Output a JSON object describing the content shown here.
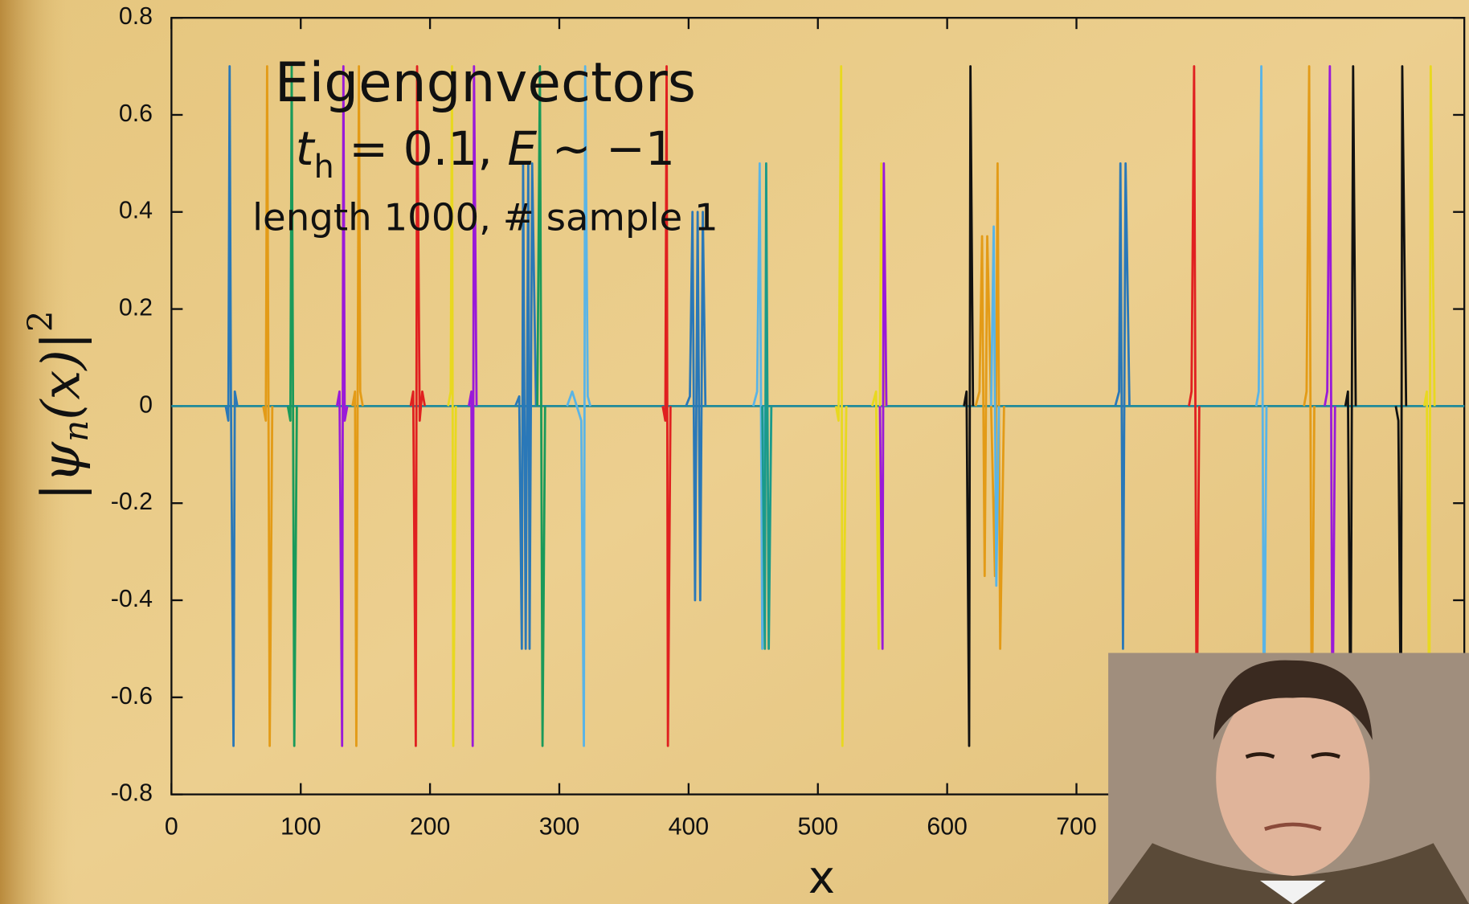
{
  "chart_data": {
    "type": "line",
    "title": "Eigengnvectors",
    "subtitle": [
      "t",
      "h",
      " = 0.1, ",
      "E",
      " ∼ −1"
    ],
    "annotation": "length 1000, # sample 1",
    "xlabel": "x",
    "ylabel": [
      "|ψ",
      "n",
      "(x)|",
      "2"
    ],
    "xlim": [
      0,
      1000
    ],
    "ylim": [
      -0.8,
      0.8
    ],
    "xticks": [
      0,
      100,
      200,
      300,
      400,
      500,
      600,
      700
    ],
    "yticks": [
      -0.8,
      -0.6,
      -0.4,
      -0.2,
      0,
      0.2,
      0.4,
      0.6,
      0.8
    ],
    "series": [
      {
        "color": "#1f8a9a",
        "x": [
          0,
          1000
        ],
        "values": [
          0,
          0
        ]
      },
      {
        "color": "#2a78b8",
        "x": [
          42,
          44,
          45,
          46,
          48,
          49,
          51
        ],
        "values": [
          0,
          -0.03,
          0.7,
          0.03,
          -0.7,
          0.03,
          0
        ]
      },
      {
        "color": "#e39b17",
        "x": [
          71,
          73,
          74,
          75,
          76,
          78
        ],
        "values": [
          0,
          -0.03,
          0.7,
          0.03,
          -0.7,
          0
        ]
      },
      {
        "color": "#1a9a5a",
        "x": [
          90,
          92,
          93,
          94,
          95,
          97
        ],
        "values": [
          0,
          -0.03,
          0.7,
          0.03,
          -0.7,
          0
        ]
      },
      {
        "color": "#9a1ad8",
        "x": [
          128,
          130,
          132,
          133,
          134,
          136
        ],
        "values": [
          0,
          0.03,
          -0.7,
          0.7,
          -0.03,
          0
        ]
      },
      {
        "color": "#e39b17",
        "x": [
          140,
          142,
          143,
          145,
          146,
          148
        ],
        "values": [
          0,
          0.03,
          -0.7,
          0.7,
          0.03,
          0
        ]
      },
      {
        "color": "#e02020",
        "x": [
          185,
          187,
          189,
          190,
          192,
          194,
          196
        ],
        "values": [
          0,
          0.03,
          -0.7,
          0.7,
          -0.03,
          0.03,
          0
        ]
      },
      {
        "color": "#e8d820",
        "x": [
          214,
          216,
          217,
          218,
          220
        ],
        "values": [
          0,
          0.03,
          0.7,
          -0.7,
          0
        ]
      },
      {
        "color": "#9a1ad8",
        "x": [
          230,
          232,
          233,
          234,
          236
        ],
        "values": [
          0,
          0.03,
          -0.7,
          0.7,
          0
        ]
      },
      {
        "color": "#2a78b8",
        "x": [
          266,
          269,
          271,
          272,
          274,
          276,
          277,
          279,
          282
        ],
        "values": [
          0,
          0.02,
          -0.5,
          0.5,
          -0.5,
          0.5,
          -0.5,
          0.5,
          0
        ]
      },
      {
        "color": "#1a9a5a",
        "x": [
          283,
          285,
          287,
          289
        ],
        "values": [
          0,
          0.7,
          -0.7,
          0
        ]
      },
      {
        "color": "#5ab4e6",
        "x": [
          306,
          310,
          317,
          319,
          320,
          322,
          324
        ],
        "values": [
          0,
          0.03,
          -0.03,
          -0.7,
          0.7,
          0.02,
          0
        ]
      },
      {
        "color": "#e02020",
        "x": [
          380,
          382,
          383,
          384,
          386
        ],
        "values": [
          0,
          -0.03,
          0.7,
          -0.7,
          0
        ]
      },
      {
        "color": "#2a78b8",
        "x": [
          398,
          401,
          403,
          405,
          407,
          409,
          411,
          413
        ],
        "values": [
          0,
          0.02,
          0.4,
          -0.4,
          0.4,
          -0.4,
          0.4,
          0
        ]
      },
      {
        "color": "#5ab4e6",
        "x": [
          450,
          453,
          455,
          457,
          459
        ],
        "values": [
          0,
          0.03,
          0.5,
          -0.5,
          0
        ]
      },
      {
        "color": "#1a9a8a",
        "x": [
          457,
          459,
          460,
          462,
          464
        ],
        "values": [
          0,
          -0.5,
          0.5,
          -0.5,
          0
        ]
      },
      {
        "color": "#e8d820",
        "x": [
          514,
          516,
          518,
          519,
          522
        ],
        "values": [
          0,
          -0.03,
          0.7,
          -0.7,
          0
        ]
      },
      {
        "color": "#e8d820",
        "x": [
          542,
          545,
          547,
          549,
          552
        ],
        "values": [
          0,
          0.03,
          -0.5,
          0.5,
          0
        ]
      },
      {
        "color": "#9a1ad8",
        "x": [
          548,
          550,
          551,
          553
        ],
        "values": [
          0,
          -0.5,
          0.5,
          0
        ]
      },
      {
        "color": "#111111",
        "x": [
          613,
          615,
          617,
          618,
          620
        ],
        "values": [
          0,
          0.03,
          -0.7,
          0.7,
          0
        ]
      },
      {
        "color": "#e39b17",
        "x": [
          622,
          625,
          627,
          629,
          631,
          637,
          639,
          641,
          644
        ],
        "values": [
          0,
          0.03,
          0.35,
          -0.35,
          0.35,
          -0.35,
          0.5,
          -0.5,
          0
        ]
      },
      {
        "color": "#5ab4e6",
        "x": [
          634,
          636,
          638,
          640
        ],
        "values": [
          0,
          0.37,
          -0.37,
          0
        ]
      },
      {
        "color": "#2a78b8",
        "x": [
          730,
          733,
          734,
          736,
          738,
          741
        ],
        "values": [
          0,
          0.03,
          0.5,
          -0.5,
          0.5,
          0
        ]
      },
      {
        "color": "#e02020",
        "x": [
          787,
          789,
          791,
          793,
          795
        ],
        "values": [
          0,
          0.03,
          0.7,
          -0.7,
          0
        ]
      },
      {
        "color": "#5ab4e6",
        "x": [
          839,
          841,
          843,
          845,
          847
        ],
        "values": [
          0,
          0.03,
          0.7,
          -0.7,
          0
        ]
      },
      {
        "color": "#e39b17",
        "x": [
          876,
          878,
          880,
          882,
          884
        ],
        "values": [
          0,
          0.03,
          0.7,
          -0.7,
          0
        ]
      },
      {
        "color": "#9a1ad8",
        "x": [
          892,
          894,
          896,
          898,
          900
        ],
        "values": [
          0,
          0.03,
          0.7,
          -0.7,
          0
        ]
      },
      {
        "color": "#111111",
        "x": [
          908,
          910,
          912,
          914,
          916
        ],
        "values": [
          0,
          0.03,
          -0.7,
          0.7,
          0
        ]
      },
      {
        "color": "#111111",
        "x": [
          947,
          949,
          951,
          952,
          955
        ],
        "values": [
          0,
          -0.03,
          -0.7,
          0.7,
          0
        ]
      },
      {
        "color": "#e8d820",
        "x": [
          969,
          971,
          973,
          974,
          977
        ],
        "values": [
          0,
          0.03,
          -0.7,
          0.7,
          0
        ]
      }
    ]
  }
}
